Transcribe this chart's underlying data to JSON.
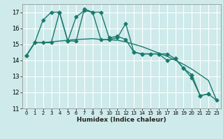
{
  "xlabel": "Humidex (Indice chaleur)",
  "x": [
    0,
    1,
    2,
    3,
    4,
    5,
    6,
    7,
    8,
    9,
    10,
    11,
    12,
    13,
    14,
    15,
    16,
    17,
    18,
    19,
    20,
    21,
    22,
    23
  ],
  "line1": [
    14.3,
    15.1,
    15.1,
    15.1,
    17.0,
    15.2,
    16.7,
    17.1,
    17.0,
    15.3,
    15.3,
    15.4,
    16.3,
    14.5,
    14.4,
    14.4,
    14.4,
    14.4,
    14.1,
    13.5,
    13.1,
    11.8,
    11.9,
    11.5
  ],
  "line2": [
    14.3,
    15.1,
    16.5,
    17.0,
    17.0,
    15.2,
    15.2,
    17.2,
    17.0,
    17.0,
    15.4,
    15.5,
    15.3,
    14.5,
    14.4,
    14.4,
    14.4,
    14.0,
    14.1,
    13.5,
    12.9,
    11.8,
    11.9,
    null
  ],
  "line3": [
    14.3,
    15.1,
    15.1,
    15.15,
    15.2,
    15.25,
    15.3,
    15.32,
    15.35,
    15.3,
    15.28,
    15.25,
    15.15,
    15.0,
    14.85,
    14.65,
    14.45,
    14.25,
    14.0,
    13.75,
    13.45,
    13.1,
    12.75,
    11.5
  ],
  "ylim": [
    11,
    17.5
  ],
  "yticks": [
    11,
    12,
    13,
    14,
    15,
    16,
    17
  ],
  "xlim": [
    -0.5,
    23.5
  ],
  "bg_color": "#ceeaea",
  "grid_color": "#ffffff",
  "line_color": "#1a7a6e",
  "markersize": 2.5,
  "linewidth": 1.0
}
